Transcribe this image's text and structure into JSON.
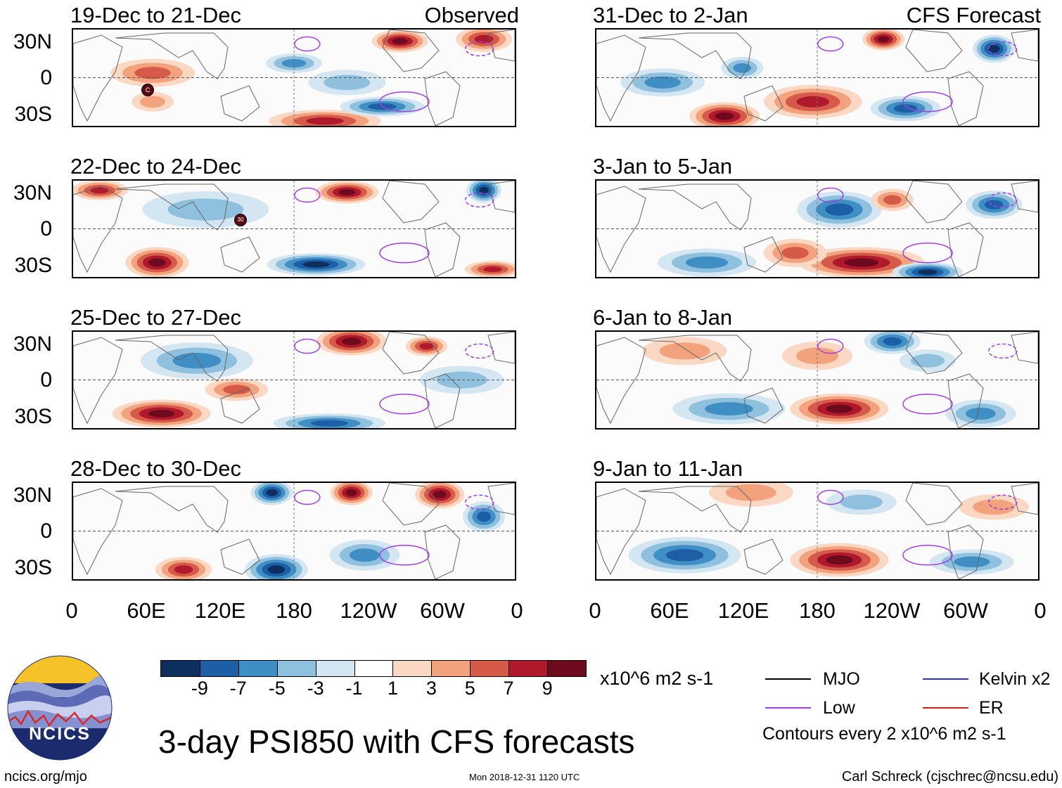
{
  "left_column": {
    "label": "Observed",
    "panels": [
      {
        "title": "19-Dec to 21-Dec"
      },
      {
        "title": "22-Dec to 24-Dec"
      },
      {
        "title": "25-Dec to 27-Dec"
      },
      {
        "title": "28-Dec to 30-Dec"
      }
    ]
  },
  "right_column": {
    "label": "CFS Forecast",
    "panels": [
      {
        "title": "31-Dec to 2-Jan"
      },
      {
        "title": "3-Jan to 5-Jan"
      },
      {
        "title": "6-Jan to 8-Jan"
      },
      {
        "title": "9-Jan to 11-Jan"
      }
    ]
  },
  "y_labels": [
    "30N",
    "0",
    "30S"
  ],
  "x_labels": [
    "0",
    "60E",
    "120E",
    "180",
    "120W",
    "60W",
    "0"
  ],
  "tc_markers": {
    "marker_1": "C",
    "marker_2": "30"
  },
  "colorbar": {
    "colors": [
      "#0d2f5e",
      "#1d5fa6",
      "#3f8fc4",
      "#8fc0de",
      "#d3e6f2",
      "#ffffff",
      "#fbd8c3",
      "#f2a27c",
      "#d65a4a",
      "#b0192b",
      "#6e0a1e"
    ],
    "labels": [
      "-9",
      "-7",
      "-5",
      "-3",
      "-1",
      "1",
      "3",
      "5",
      "7",
      "9"
    ],
    "units": "x10^6 m2 s-1"
  },
  "legend": {
    "mjo": {
      "label": "MJO",
      "color": "#000000"
    },
    "low": {
      "label": "Low",
      "color": "#a040e0"
    },
    "kelvin": {
      "label": "Kelvin x2",
      "color": "#3030c0"
    },
    "er": {
      "label": "ER",
      "color": "#d02020"
    },
    "contours_note": "Contours every 2 x10^6 m2 s-1"
  },
  "title": "3-day PSI850 with CFS forecasts",
  "logo_text": "NCICS",
  "footer": {
    "url": "ncics.org/mjo",
    "timestamp": "Mon 2018-12-31 1120 UTC",
    "author": "Carl Schreck (cjschrec@ncsu.edu)"
  }
}
